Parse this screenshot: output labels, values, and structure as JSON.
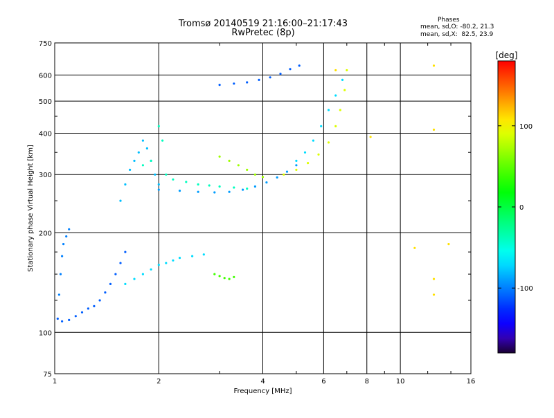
{
  "header": {
    "title": "Tromsø 20140519 21:16:00–21:17:43",
    "subtitle": "RwPretec (8p)"
  },
  "phase_box": {
    "heading": "Phases",
    "line_o": "mean, sd,O: -80.2, 21.3",
    "line_x": "mean, sd,X:  82.5, 23.9"
  },
  "colorbar": {
    "unit_label": "[deg]",
    "ticks": [
      "100",
      "0",
      "-100"
    ],
    "tick_values": [
      100,
      0,
      -100
    ],
    "range": [
      -180,
      180
    ]
  },
  "chart_data": {
    "type": "scatter",
    "title": "Tromsø 20140519 21:16:00–21:17:43",
    "subtitle": "RwPretec (8p)",
    "xlabel": "Frequency [MHz]",
    "ylabel": "Stationary phase Virtual Height [km]",
    "x_scale": "log",
    "y_scale": "log",
    "xlim": [
      1,
      16
    ],
    "ylim": [
      75,
      750
    ],
    "xticks": [
      1,
      2,
      4,
      6,
      8,
      10,
      16
    ],
    "xtick_labels": [
      "1",
      "2",
      "4",
      "6",
      "8",
      "10",
      "16"
    ],
    "yticks": [
      75,
      100,
      200,
      300,
      400,
      500,
      600,
      750
    ],
    "ytick_labels": [
      "75",
      "100",
      "200",
      "300",
      "400",
      "500",
      "600",
      "750"
    ],
    "grid": true,
    "color_variable": "phase",
    "color_unit": "deg",
    "series": [
      {
        "phase": -110,
        "x": [
          1.02,
          1.05,
          1.1,
          1.15,
          1.2,
          1.25,
          1.3,
          1.35,
          1.4,
          1.45,
          1.5,
          1.55,
          1.6
        ],
        "y": [
          110,
          108,
          109,
          112,
          115,
          118,
          120,
          125,
          132,
          140,
          150,
          162,
          175
        ]
      },
      {
        "phase": -100,
        "x": [
          1.03,
          1.04,
          1.05,
          1.06,
          1.08,
          1.1
        ],
        "y": [
          130,
          150,
          170,
          185,
          195,
          205
        ]
      },
      {
        "phase": -80,
        "x": [
          1.55,
          1.6,
          1.65,
          1.7,
          1.75,
          1.8,
          1.85,
          1.9,
          1.95,
          2.0
        ],
        "y": [
          250,
          280,
          310,
          330,
          350,
          380,
          360,
          330,
          300,
          280
        ]
      },
      {
        "phase": -70,
        "x": [
          1.6,
          1.7,
          1.8,
          1.9,
          2.0,
          2.1,
          2.2,
          2.3,
          2.5,
          2.7
        ],
        "y": [
          140,
          145,
          150,
          155,
          160,
          162,
          165,
          168,
          170,
          172
        ]
      },
      {
        "phase": -40,
        "x": [
          1.8,
          1.9,
          2.0,
          2.05,
          2.1,
          2.2,
          2.4,
          2.6,
          2.8,
          3.0,
          3.3,
          3.6
        ],
        "y": [
          320,
          330,
          420,
          380,
          300,
          290,
          285,
          280,
          278,
          276,
          274,
          272
        ]
      },
      {
        "phase": -90,
        "x": [
          2.0,
          2.3,
          2.6,
          2.9,
          3.2,
          3.5,
          3.8,
          4.1,
          4.4,
          4.7,
          5.0
        ],
        "y": [
          270,
          268,
          266,
          265,
          266,
          270,
          276,
          284,
          294,
          306,
          320
        ]
      },
      {
        "phase": -70,
        "x": [
          5.0,
          5.3,
          5.6,
          5.9,
          6.2,
          6.5,
          6.8
        ],
        "y": [
          330,
          350,
          380,
          420,
          470,
          520,
          580
        ]
      },
      {
        "phase": -110,
        "x": [
          3.0,
          3.3,
          3.6,
          3.9,
          4.2,
          4.5,
          4.8,
          5.1
        ],
        "y": [
          560,
          565,
          570,
          580,
          590,
          605,
          625,
          640
        ]
      },
      {
        "phase": 70,
        "x": [
          3.0,
          3.2,
          3.4,
          3.6,
          3.8,
          4.0
        ],
        "y": [
          340,
          330,
          320,
          310,
          300,
          295
        ]
      },
      {
        "phase": 90,
        "x": [
          4.6,
          5.0,
          5.4,
          5.8,
          6.2,
          6.5,
          6.7,
          6.9,
          7.0
        ],
        "y": [
          300,
          310,
          325,
          345,
          375,
          420,
          470,
          540,
          620
        ]
      },
      {
        "phase": 40,
        "x": [
          2.9,
          3.0,
          3.1,
          3.2,
          3.3
        ],
        "y": [
          150,
          148,
          146,
          145,
          147
        ]
      },
      {
        "phase": 110,
        "x": [
          6.5,
          8.2,
          11.0,
          12.5,
          12.5,
          12.5,
          12.5,
          13.8
        ],
        "y": [
          620,
          390,
          180,
          145,
          130,
          410,
          640,
          185
        ]
      }
    ]
  }
}
